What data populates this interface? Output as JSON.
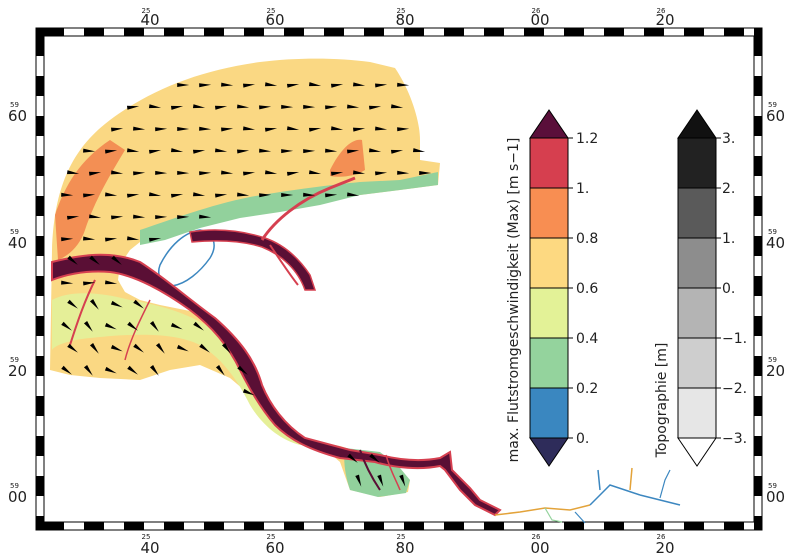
{
  "frame": {
    "top_labels": [
      {
        "small": "25",
        "big": "40"
      },
      {
        "small": "25",
        "big": "60"
      },
      {
        "small": "25",
        "big": "80"
      },
      {
        "small": "26",
        "big": "00"
      },
      {
        "small": "26",
        "big": "20"
      }
    ],
    "bottom_labels": [
      {
        "small": "25",
        "big": "40"
      },
      {
        "small": "25",
        "big": "60"
      },
      {
        "small": "25",
        "big": "80"
      },
      {
        "small": "26",
        "big": "00"
      },
      {
        "small": "26",
        "big": "20"
      }
    ],
    "left_labels": [
      {
        "small": "59",
        "big": "60"
      },
      {
        "small": "59",
        "big": "40"
      },
      {
        "small": "59",
        "big": "20"
      },
      {
        "small": "59",
        "big": "00"
      }
    ],
    "right_labels": [
      {
        "small": "59",
        "big": "60"
      },
      {
        "small": "59",
        "big": "40"
      },
      {
        "small": "59",
        "big": "20"
      },
      {
        "small": "59",
        "big": "00"
      }
    ]
  },
  "legend_velocity": {
    "title": "max. Flutstromgeschwindigkeit (Max) [m s−1]",
    "ticks": [
      "1.2",
      "1.",
      "0.8",
      "0.6",
      "0.4",
      "0.2",
      "0."
    ],
    "colors": [
      "#d63f4f",
      "#f88e52",
      "#fdd981",
      "#e3f297",
      "#94d39d",
      "#3a87c0"
    ],
    "over_color": "#5a0f3a",
    "under_color": "#2e2c5a"
  },
  "legend_topo": {
    "title": "Topographie [m]",
    "ticks": [
      "3.",
      "2.",
      "1.",
      "0.",
      "−1.",
      "−2.",
      "−3."
    ],
    "colors": [
      "#222222",
      "#5a5a5a",
      "#8d8d8d",
      "#b4b4b4",
      "#cecece",
      "#e6e6e6"
    ],
    "over_color": "#111111",
    "under_color": "#ffffff"
  },
  "map_colors": {
    "sea": "#fad883",
    "light": "#e5ef98",
    "green": "#92d19c",
    "orange": "#f38f54",
    "red": "#d64050",
    "deep": "#5a0f35",
    "blue": "#3c87c0",
    "land": "#dcdcdc"
  }
}
